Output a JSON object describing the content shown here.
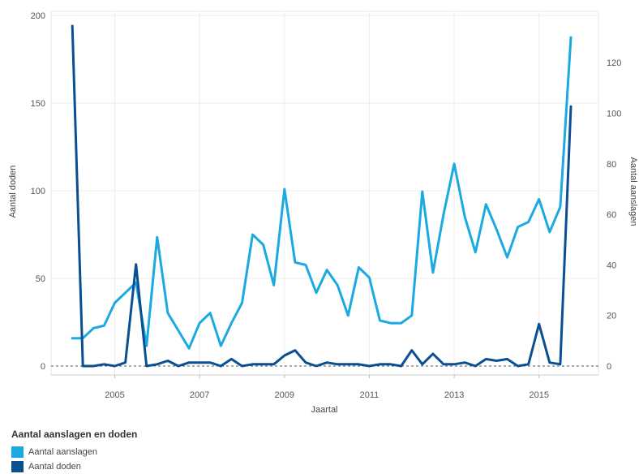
{
  "chart_data": {
    "type": "line",
    "xlabel": "Jaartal",
    "ylabel_left": "Aantal doden",
    "ylabel_right": "Aantal aanslagen",
    "x_ticks": [
      "2005",
      "2007",
      "2009",
      "2011",
      "2013",
      "2015"
    ],
    "x_tick_values": [
      2005,
      2007,
      2009,
      2011,
      2013,
      2015
    ],
    "xlim": [
      2003.5,
      2016.4
    ],
    "ylim_left": [
      0,
      200
    ],
    "ylim_right": [
      0,
      138.7
    ],
    "y_ticks_left": [
      0,
      50,
      100,
      150,
      200
    ],
    "y_ticks_right": [
      0,
      20,
      40,
      60,
      80,
      100,
      120
    ],
    "grid": true,
    "legend": {
      "title": "Aantal aanslagen en doden",
      "placement": "bottom-left"
    },
    "series": [
      {
        "name": "Aantal aanslagen",
        "axis": "right",
        "color": "#1aa9e0",
        "x": [
          2004.0,
          2004.25,
          2004.5,
          2004.75,
          2005.0,
          2005.25,
          2005.5,
          2005.75,
          2006.0,
          2006.25,
          2006.5,
          2006.75,
          2007.0,
          2007.25,
          2007.5,
          2007.75,
          2008.0,
          2008.25,
          2008.5,
          2008.75,
          2009.0,
          2009.25,
          2009.5,
          2009.75,
          2010.0,
          2010.25,
          2010.5,
          2010.75,
          2011.0,
          2011.25,
          2011.5,
          2011.75,
          2012.0,
          2012.25,
          2012.5,
          2012.75,
          2013.0,
          2013.25,
          2013.5,
          2013.75,
          2014.0,
          2014.25,
          2014.5,
          2014.75,
          2015.0,
          2015.25,
          2015.5,
          2015.75
        ],
        "values": [
          11,
          11,
          15,
          16,
          25,
          29,
          33,
          8,
          51,
          21,
          14,
          7,
          17,
          21,
          8,
          17,
          25,
          52,
          48,
          32,
          70,
          41,
          40,
          29,
          38,
          32,
          20,
          39,
          35,
          18,
          17,
          17,
          20,
          69,
          37,
          60,
          80,
          59,
          45,
          64,
          54,
          43,
          55,
          57,
          66,
          53,
          63,
          130
        ]
      },
      {
        "name": "Aantal doden",
        "axis": "left",
        "color": "#0a4f92",
        "x": [
          2004.0,
          2004.25,
          2004.5,
          2004.75,
          2005.0,
          2005.25,
          2005.5,
          2005.75,
          2006.0,
          2006.25,
          2006.5,
          2006.75,
          2007.0,
          2007.25,
          2007.5,
          2007.75,
          2008.0,
          2008.25,
          2008.5,
          2008.75,
          2009.0,
          2009.25,
          2009.5,
          2009.75,
          2010.0,
          2010.25,
          2010.5,
          2010.75,
          2011.0,
          2011.25,
          2011.5,
          2011.75,
          2012.0,
          2012.25,
          2012.5,
          2012.75,
          2013.0,
          2013.25,
          2013.5,
          2013.75,
          2014.0,
          2014.25,
          2014.5,
          2014.75,
          2015.0,
          2015.25,
          2015.5,
          2015.75
        ],
        "values": [
          194,
          0,
          0,
          1,
          0,
          2,
          58,
          0,
          1,
          3,
          0,
          2,
          2,
          2,
          0,
          4,
          0,
          1,
          1,
          1,
          6,
          9,
          2,
          0,
          2,
          1,
          1,
          1,
          0,
          1,
          1,
          0,
          9,
          1,
          7,
          1,
          1,
          2,
          0,
          4,
          3,
          4,
          0,
          1,
          24,
          2,
          1,
          148
        ]
      }
    ]
  }
}
